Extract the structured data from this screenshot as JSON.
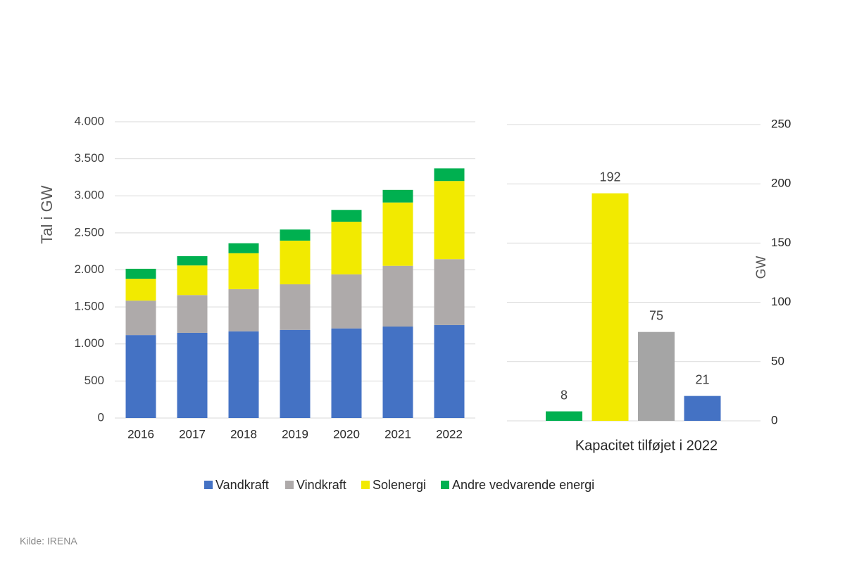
{
  "chart_data": [
    {
      "type": "stacked-bar",
      "y_label": "Tal i GW",
      "categories": [
        "2016",
        "2017",
        "2018",
        "2019",
        "2020",
        "2021",
        "2022"
      ],
      "series": [
        {
          "name": "Vandkraft",
          "color": "#4472c4",
          "values": [
            1120,
            1150,
            1170,
            1190,
            1210,
            1235,
            1255
          ]
        },
        {
          "name": "Vindkraft",
          "color": "#aeaaaa",
          "values": [
            465,
            510,
            570,
            615,
            730,
            820,
            890
          ]
        },
        {
          "name": "Solenergi",
          "color": "#f2ea00",
          "values": [
            295,
            400,
            485,
            590,
            710,
            855,
            1055
          ]
        },
        {
          "name": "Andre vedvarende energi",
          "color": "#00b050",
          "values": [
            135,
            125,
            135,
            150,
            160,
            170,
            170
          ]
        }
      ],
      "ylim": [
        0,
        4000
      ],
      "yticks": [
        0,
        500,
        {
          "value": 1000,
          "label": "1.000"
        },
        {
          "value": 1500,
          "label": "1.500"
        },
        {
          "value": 2000,
          "label": "2.000"
        },
        {
          "value": 2500,
          "label": "2.500"
        },
        {
          "value": 3000,
          "label": "3.000"
        },
        {
          "value": 3500,
          "label": "3.500"
        },
        {
          "value": 4000,
          "label": "4.000"
        }
      ],
      "grid": true,
      "legend": "bottom"
    },
    {
      "type": "bar",
      "x_label": "Kapacitet tilføjet i 2022",
      "y_label": "GW",
      "categories": [
        null,
        null,
        null,
        null
      ],
      "values": [
        8,
        192,
        75,
        21
      ],
      "colors": [
        "#00b050",
        "#f2ea00",
        "#a5a5a5",
        "#4472c4"
      ],
      "ylim": [
        0,
        250
      ],
      "yticks": [
        0,
        50,
        100,
        150,
        200,
        250
      ],
      "y_axis_side": "right",
      "grid": true
    }
  ],
  "source": "Kilde: IRENA"
}
